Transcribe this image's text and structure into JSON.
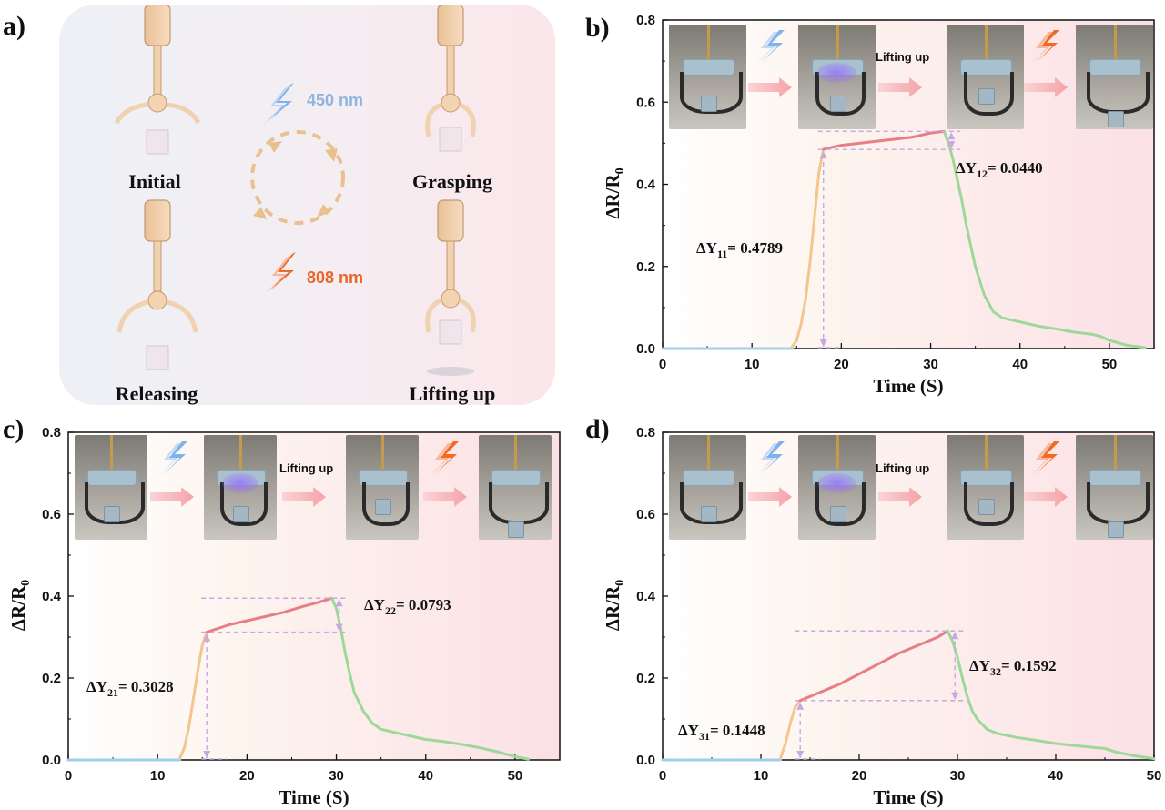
{
  "panel_a": {
    "letter": "a)",
    "states": [
      "Initial",
      "Grasping",
      "Releasing",
      "Lifting up"
    ],
    "wavelengths": [
      {
        "label": "450 nm",
        "color": "#8fb4e0"
      },
      {
        "label": "808 nm",
        "color": "#e8662a"
      }
    ]
  },
  "photo_strip": {
    "lift_label": "Lifting up"
  },
  "colors": {
    "rise": "#f3c68f",
    "hold": "#e77e86",
    "fall": "#9dd89a",
    "baseline": "#9fd0e8",
    "guide": "#c7a8e0",
    "blue_bolt": "#7fb2ea",
    "orange_bolt": "#f06a20",
    "arrow": "#f4a3a8"
  },
  "chart_data": [
    {
      "panel": "b)",
      "type": "line",
      "xlabel": "Time (S)",
      "ylabel": "ΔR/R0",
      "xlim": [
        0,
        55
      ],
      "ylim": [
        0,
        0.8
      ],
      "xticks": [
        "0",
        "10",
        "20",
        "30",
        "40",
        "50"
      ],
      "yticks": [
        "0.0",
        "0.2",
        "0.4",
        "0.6",
        "0.8"
      ],
      "annotations": [
        {
          "sym": "ΔY",
          "sub": "11",
          "text": "= 0.4789"
        },
        {
          "sym": "ΔY",
          "sub": "12",
          "text": "= 0.0440"
        }
      ],
      "baseline": {
        "x": [
          0,
          5,
          10,
          14,
          14.5
        ],
        "y": [
          0,
          0,
          0,
          0,
          0
        ]
      },
      "rise": {
        "x": [
          14.5,
          15,
          15.5,
          16,
          16.5,
          17,
          17.5,
          18
        ],
        "y": [
          0.005,
          0.02,
          0.06,
          0.12,
          0.21,
          0.32,
          0.43,
          0.485
        ]
      },
      "hold": {
        "x": [
          18,
          20,
          22,
          24,
          26,
          28,
          30,
          31.5
        ],
        "y": [
          0.485,
          0.495,
          0.5,
          0.505,
          0.51,
          0.515,
          0.525,
          0.529
        ]
      },
      "fall": {
        "x": [
          31.5,
          32,
          32.5,
          33,
          33.5,
          34,
          35,
          36,
          37,
          38,
          40,
          42,
          44,
          46,
          48,
          49,
          50,
          52,
          54
        ],
        "y": [
          0.529,
          0.5,
          0.46,
          0.41,
          0.36,
          0.3,
          0.2,
          0.13,
          0.09,
          0.075,
          0.065,
          0.055,
          0.048,
          0.04,
          0.035,
          0.03,
          0.02,
          0.008,
          0.002
        ]
      }
    },
    {
      "panel": "c)",
      "type": "line",
      "xlabel": "Time (S)",
      "ylabel": "ΔR/R0",
      "xlim": [
        0,
        55
      ],
      "ylim": [
        0,
        0.8
      ],
      "xticks": [
        "0",
        "10",
        "20",
        "30",
        "40",
        "50"
      ],
      "yticks": [
        "0.0",
        "0.2",
        "0.4",
        "0.6",
        "0.8"
      ],
      "annotations": [
        {
          "sym": "ΔY",
          "sub": "21",
          "text": "= 0.3028"
        },
        {
          "sym": "ΔY",
          "sub": "22",
          "text": "= 0.0793"
        }
      ],
      "baseline": {
        "x": [
          0,
          5,
          10,
          12,
          12.5
        ],
        "y": [
          0,
          0,
          0,
          0,
          0
        ]
      },
      "rise": {
        "x": [
          12.5,
          13,
          13.5,
          14,
          14.5,
          15,
          15.5
        ],
        "y": [
          0.005,
          0.03,
          0.08,
          0.15,
          0.22,
          0.28,
          0.312
        ]
      },
      "hold": {
        "x": [
          15.5,
          18,
          20,
          22,
          24,
          26,
          28,
          29.5
        ],
        "y": [
          0.312,
          0.33,
          0.34,
          0.35,
          0.36,
          0.373,
          0.385,
          0.395
        ]
      },
      "fall": {
        "x": [
          29.5,
          30,
          30.5,
          31,
          31.5,
          32,
          33,
          34,
          35,
          37,
          40,
          42,
          44,
          46,
          48,
          50,
          51.5
        ],
        "y": [
          0.395,
          0.37,
          0.32,
          0.26,
          0.21,
          0.165,
          0.12,
          0.09,
          0.075,
          0.065,
          0.05,
          0.045,
          0.038,
          0.03,
          0.02,
          0.008,
          0.002
        ]
      }
    },
    {
      "panel": "d)",
      "type": "line",
      "xlabel": "Time (S)",
      "ylabel": "ΔR/R0",
      "xlim": [
        0,
        50
      ],
      "ylim": [
        0,
        0.8
      ],
      "xticks": [
        "0",
        "10",
        "20",
        "30",
        "40",
        "50"
      ],
      "yticks": [
        "0.0",
        "0.2",
        "0.4",
        "0.6",
        "0.8"
      ],
      "annotations": [
        {
          "sym": "ΔY",
          "sub": "31",
          "text": "= 0.1448"
        },
        {
          "sym": "ΔY",
          "sub": "32",
          "text": "= 0.1592"
        }
      ],
      "baseline": {
        "x": [
          0,
          5,
          10,
          11.5,
          12
        ],
        "y": [
          0,
          0,
          0,
          0,
          0
        ]
      },
      "rise": {
        "x": [
          12,
          12.5,
          13,
          13.5,
          14
        ],
        "y": [
          0.005,
          0.04,
          0.09,
          0.13,
          0.145
        ]
      },
      "hold": {
        "x": [
          14,
          16,
          18,
          20,
          22,
          24,
          26,
          28,
          29
        ],
        "y": [
          0.145,
          0.165,
          0.185,
          0.21,
          0.235,
          0.26,
          0.28,
          0.3,
          0.315
        ]
      },
      "fall": {
        "x": [
          29,
          29.5,
          30,
          30.5,
          31,
          31.5,
          32,
          33,
          34,
          36,
          38,
          40,
          42,
          44,
          45,
          46,
          48,
          50
        ],
        "y": [
          0.315,
          0.29,
          0.25,
          0.2,
          0.155,
          0.12,
          0.1,
          0.075,
          0.065,
          0.055,
          0.048,
          0.04,
          0.035,
          0.03,
          0.028,
          0.02,
          0.01,
          0.003
        ]
      }
    }
  ]
}
